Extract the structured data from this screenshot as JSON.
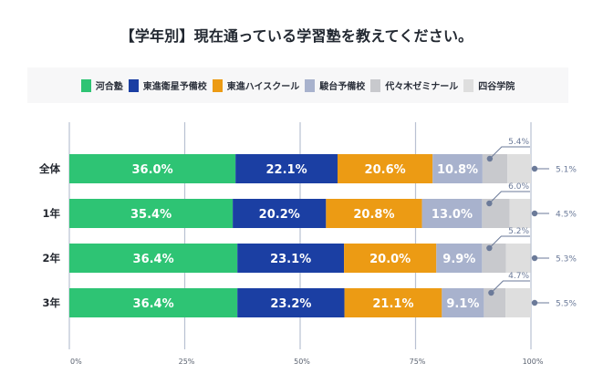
{
  "chart_data": {
    "type": "bar",
    "orientation": "horizontal",
    "stacked": true,
    "title": "【学年別】現在通っている学習塾を教えてください。",
    "xlabel": "",
    "ylabel": "",
    "xlim": [
      0,
      100
    ],
    "x_ticks": [
      "0%",
      "25%",
      "50%",
      "75%",
      "100%"
    ],
    "x_tick_values": [
      0,
      25,
      50,
      75,
      100
    ],
    "grid": true,
    "legend_position": "top",
    "categories": [
      "全体",
      "1年",
      "2年",
      "3年"
    ],
    "series": [
      {
        "name": "河合塾",
        "color": "#2ec474",
        "values": [
          36.0,
          35.4,
          36.4,
          36.4
        ]
      },
      {
        "name": "東進衛星予備校",
        "color": "#1b3fa3",
        "values": [
          22.1,
          20.2,
          23.1,
          23.2
        ]
      },
      {
        "name": "東進ハイスクール",
        "color": "#ec9b14",
        "values": [
          20.6,
          20.8,
          20.0,
          21.1
        ]
      },
      {
        "name": "駿台予備校",
        "color": "#a8b2cd",
        "values": [
          10.8,
          13.0,
          9.9,
          9.1
        ]
      },
      {
        "name": "代々木ゼミナール",
        "color": "#c8c9cd",
        "values": [
          5.4,
          6.0,
          5.2,
          4.7
        ]
      },
      {
        "name": "四谷学院",
        "color": "#dedede",
        "values": [
          5.1,
          4.5,
          5.3,
          5.5
        ]
      }
    ],
    "data_labels": [
      [
        "36.0%",
        "22.1%",
        "20.6%",
        "10.8%",
        "5.4%",
        "5.1%"
      ],
      [
        "35.4%",
        "20.2%",
        "20.8%",
        "13.0%",
        "6.0%",
        "4.5%"
      ],
      [
        "36.4%",
        "23.1%",
        "20.0%",
        "9.9%",
        "5.2%",
        "5.3%"
      ],
      [
        "36.4%",
        "23.2%",
        "21.1%",
        "9.1%",
        "4.7%",
        "5.5%"
      ]
    ],
    "label_color": "#ffffff",
    "callout_color": "#6b7a99",
    "grid_color": "#b9c1d2"
  }
}
